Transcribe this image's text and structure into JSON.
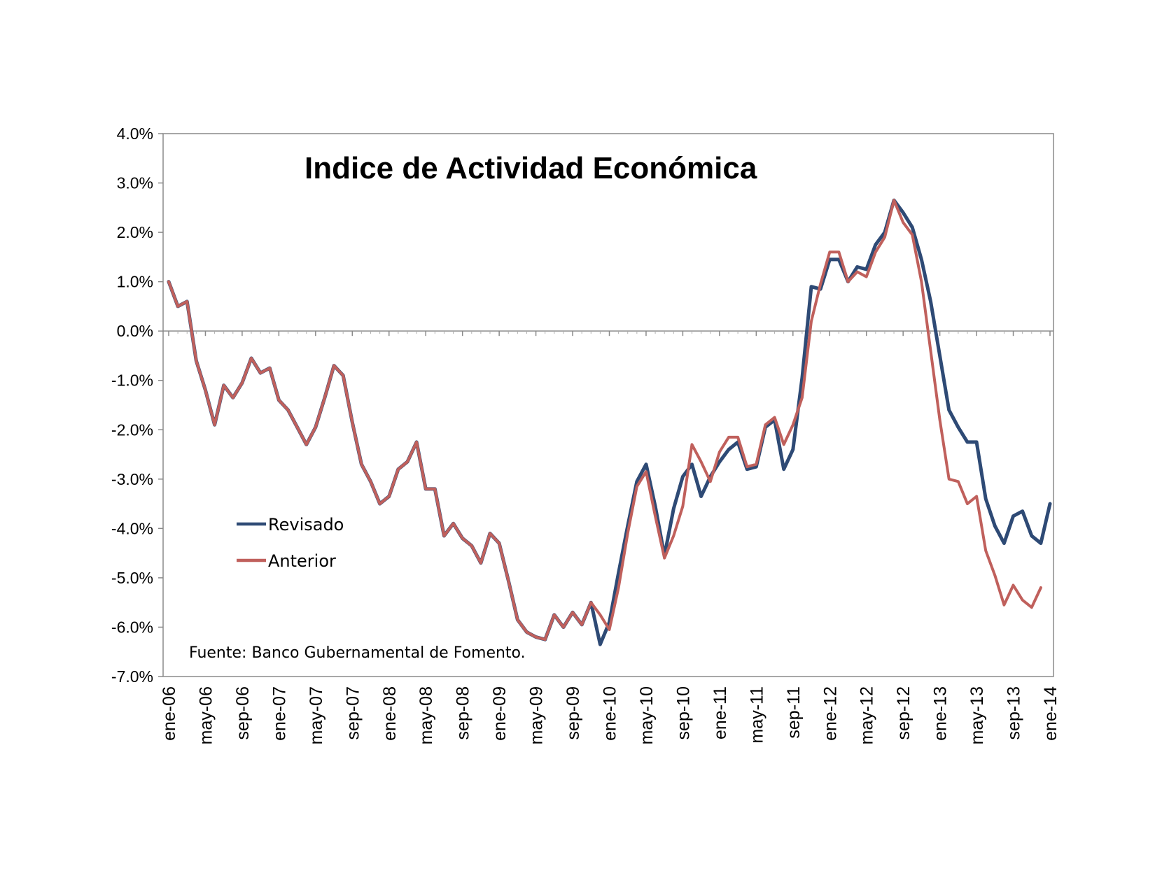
{
  "chart_data": {
    "type": "line",
    "title": "Indice de Actividad Económica",
    "source": "Fuente: Banco Gubernamental de Fomento.",
    "xlabel": "",
    "ylabel": "",
    "ylim": [
      -7.0,
      4.0
    ],
    "yticks": [
      "4.0%",
      "3.0%",
      "2.0%",
      "1.0%",
      "0.0%",
      "-1.0%",
      "-2.0%",
      "-3.0%",
      "-4.0%",
      "-5.0%",
      "-6.0%",
      "-7.0%"
    ],
    "xticks": [
      "ene-06",
      "may-06",
      "sep-06",
      "ene-07",
      "may-07",
      "sep-07",
      "ene-08",
      "may-08",
      "sep-08",
      "ene-09",
      "may-09",
      "sep-09",
      "ene-10",
      "may-10",
      "sep-10",
      "ene-11",
      "may-11",
      "sep-11",
      "ene-12",
      "may-12",
      "sep-12",
      "ene-13",
      "may-13",
      "sep-13",
      "ene-14"
    ],
    "grid": false,
    "legend": "left",
    "series": [
      {
        "name": "Revisado",
        "color": "#2e4a75",
        "values": [
          1.0,
          0.5,
          0.6,
          -0.6,
          -1.2,
          -1.9,
          -1.1,
          -1.35,
          -1.05,
          -0.55,
          -0.85,
          -0.75,
          -1.4,
          -1.6,
          -1.95,
          -2.3,
          -1.95,
          -1.35,
          -0.7,
          -0.9,
          -1.85,
          -2.7,
          -3.05,
          -3.5,
          -3.35,
          -2.8,
          -2.65,
          -2.25,
          -3.2,
          -3.2,
          -4.15,
          -3.9,
          -4.2,
          -4.35,
          -4.7,
          -4.1,
          -4.3,
          -5.05,
          -5.85,
          -6.1,
          -6.2,
          -6.25,
          -5.75,
          -6.0,
          -5.7,
          -5.95,
          -5.5,
          -6.35,
          -5.9,
          -4.9,
          -3.95,
          -3.05,
          -2.7,
          -3.55,
          -4.55,
          -3.6,
          -2.95,
          -2.7,
          -3.35,
          -2.95,
          -2.65,
          -2.4,
          -2.25,
          -2.8,
          -2.75,
          -1.95,
          -1.8,
          -2.8,
          -2.4,
          -0.95,
          0.9,
          0.85,
          1.45,
          1.45,
          1.0,
          1.3,
          1.25,
          1.75,
          2.0,
          2.65,
          2.4,
          2.1,
          1.45,
          0.6,
          -0.5,
          -1.6,
          -1.95,
          -2.25,
          -2.25,
          -3.4,
          -3.95,
          -4.3,
          -3.75,
          -3.65,
          -4.15,
          -4.3,
          -3.5
        ]
      },
      {
        "name": "Anterior",
        "color": "#c0605c",
        "values": [
          1.0,
          0.5,
          0.6,
          -0.6,
          -1.2,
          -1.9,
          -1.1,
          -1.35,
          -1.05,
          -0.55,
          -0.85,
          -0.75,
          -1.4,
          -1.6,
          -1.95,
          -2.3,
          -1.95,
          -1.35,
          -0.7,
          -0.9,
          -1.85,
          -2.7,
          -3.05,
          -3.5,
          -3.35,
          -2.8,
          -2.65,
          -2.25,
          -3.2,
          -3.2,
          -4.15,
          -3.9,
          -4.2,
          -4.35,
          -4.7,
          -4.1,
          -4.3,
          -5.05,
          -5.85,
          -6.1,
          -6.2,
          -6.25,
          -5.75,
          -6.0,
          -5.7,
          -5.95,
          -5.5,
          -5.75,
          -6.05,
          -5.2,
          -4.1,
          -3.15,
          -2.85,
          -3.75,
          -4.6,
          -4.15,
          -3.55,
          -2.3,
          -2.65,
          -3.05,
          -2.45,
          -2.15,
          -2.15,
          -2.75,
          -2.7,
          -1.9,
          -1.75,
          -2.3,
          -1.9,
          -1.35,
          0.2,
          0.95,
          1.6,
          1.6,
          1.0,
          1.2,
          1.1,
          1.6,
          1.9,
          2.65,
          2.2,
          1.95,
          1.0,
          -0.4,
          -1.8,
          -3.0,
          -3.05,
          -3.5,
          -3.35,
          -4.45,
          -4.95,
          -5.55,
          -5.15,
          -5.45,
          -5.6,
          -5.2
        ]
      }
    ]
  }
}
